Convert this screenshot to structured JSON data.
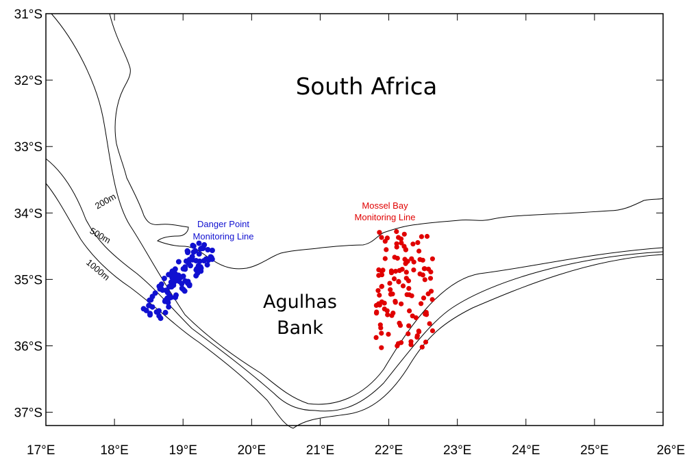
{
  "map": {
    "lon_range": [
      17,
      26
    ],
    "lat_range": [
      -37.2,
      -31
    ],
    "lon_ticks": [
      {
        "value": 17,
        "label": "17°E"
      },
      {
        "value": 18,
        "label": "18°E"
      },
      {
        "value": 19,
        "label": "19°E"
      },
      {
        "value": 20,
        "label": "20°E"
      },
      {
        "value": 21,
        "label": "21°E"
      },
      {
        "value": 22,
        "label": "22°E"
      },
      {
        "value": 23,
        "label": "23°E"
      },
      {
        "value": 24,
        "label": "24°E"
      },
      {
        "value": 25,
        "label": "25°E"
      },
      {
        "value": 26,
        "label": "26°E"
      }
    ],
    "lat_ticks": [
      {
        "value": -31,
        "label": "31°S"
      },
      {
        "value": -32,
        "label": "32°S"
      },
      {
        "value": -33,
        "label": "33°S"
      },
      {
        "value": -34,
        "label": "34°S"
      },
      {
        "value": -35,
        "label": "35°S"
      },
      {
        "value": -36,
        "label": "36°S"
      },
      {
        "value": -37,
        "label": "37°S"
      }
    ],
    "region_label": "South Africa",
    "bank_label": [
      "Agulhas",
      "Bank"
    ],
    "isobaths": [
      {
        "label": "200m",
        "depth": 200
      },
      {
        "label": "500m",
        "depth": 500
      },
      {
        "label": "1000m",
        "depth": 1000
      }
    ],
    "lines": {
      "danger_point": {
        "label": [
          "Danger Point",
          "Monitoring Line"
        ],
        "color": "#1010d0"
      },
      "mossel_bay": {
        "label": [
          "Mossel Bay",
          "Monitoring Line"
        ],
        "color": "#e00000"
      }
    },
    "colors": {
      "land_line": "#000000",
      "background": "#ffffff"
    }
  }
}
